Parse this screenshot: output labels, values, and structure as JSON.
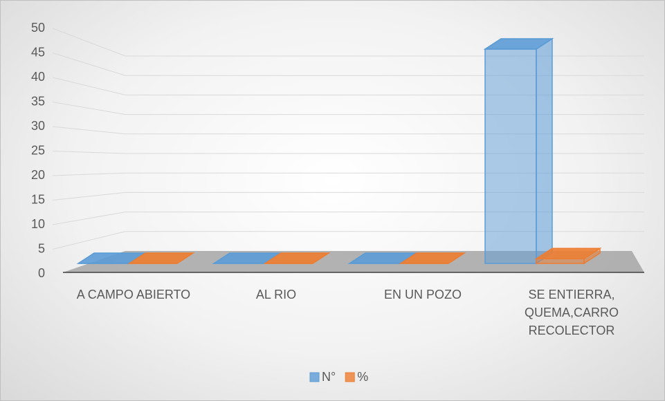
{
  "chart_data": {
    "type": "bar3d",
    "categories": [
      "A CAMPO ABIERTO",
      "AL RIO",
      "EN UN POZO",
      "SE ENTIERRA, QUEMA,CARRO RECOLECTOR"
    ],
    "series": [
      {
        "name": "N°",
        "color": "#5b9bd5",
        "values": [
          0,
          0,
          0,
          46
        ]
      },
      {
        "name": "%",
        "color": "#ed7d31",
        "values": [
          0,
          0,
          0,
          1
        ]
      }
    ],
    "ylim": [
      0,
      50
    ],
    "yticks": [
      0,
      5,
      10,
      15,
      20,
      25,
      30,
      35,
      40,
      45,
      50
    ],
    "grid": true,
    "legend": "bottom"
  }
}
